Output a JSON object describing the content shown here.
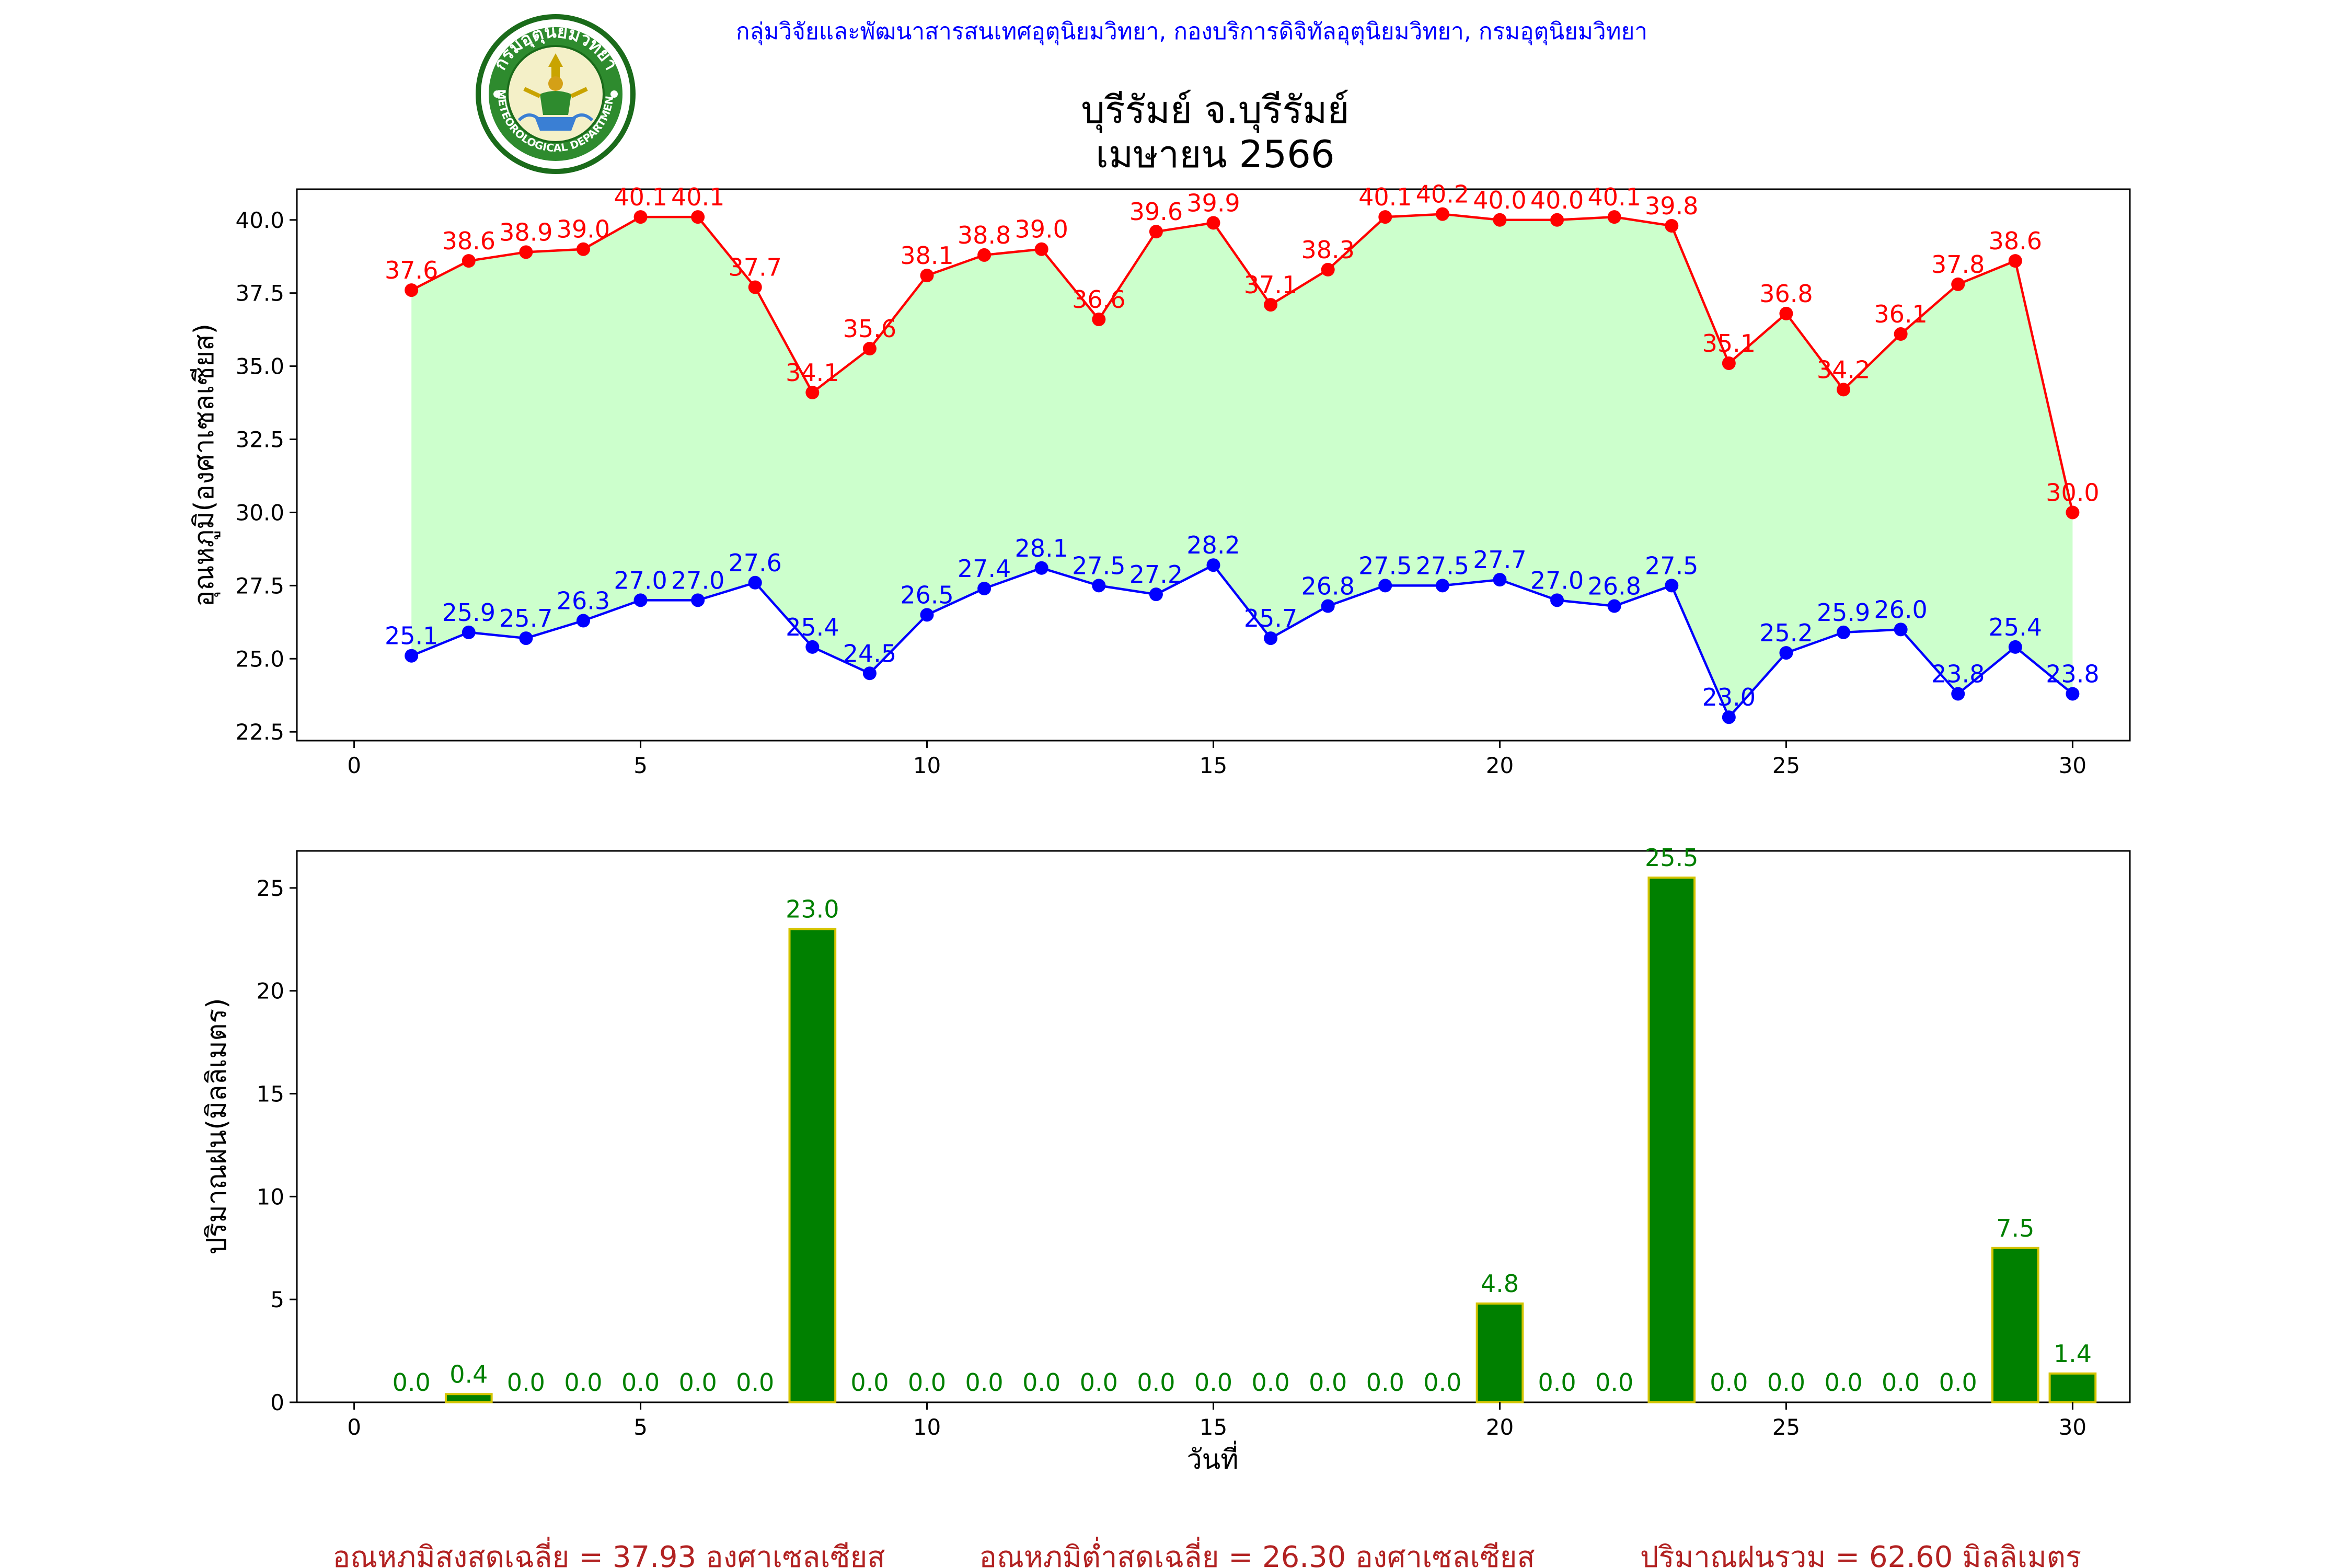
{
  "header": {
    "org": "กลุ่มวิจัยและพัฒนาสารสนเทศอุตุนิยมวิทยา, กองบริการดิจิทัลอุตุนิยมวิทยา, กรมอุตุนิยมวิทยา",
    "title": "บุรีรัมย์ จ.บุรีรัมย์",
    "subtitle": "เมษายน 2566"
  },
  "logo": {
    "text_top": "กรมอุตุนิยมวิทยา",
    "text_bottom": "METEOROLOGICAL DEPARTMENT"
  },
  "colors": {
    "max_line": "#ff0000",
    "min_line": "#0000ff",
    "band_fill": "#ccffcc",
    "rain_bar": "#008000",
    "rain_edge": "#d4c400",
    "rain_label": "#008000",
    "summary": "#b22222",
    "header_org": "#0000ff"
  },
  "chart_data": [
    {
      "type": "line",
      "ylabel": "อุณหภูมิ(องศาเซลเซียส)",
      "xlabel": "",
      "xlim": [
        -1,
        31
      ],
      "ylim": [
        22.2,
        41.05
      ],
      "xticks": [
        0,
        5,
        10,
        15,
        20,
        25,
        30
      ],
      "yticks": [
        22.5,
        25.0,
        27.5,
        30.0,
        32.5,
        35.0,
        37.5,
        40.0
      ],
      "x": [
        1,
        2,
        3,
        4,
        5,
        6,
        7,
        8,
        9,
        10,
        11,
        12,
        13,
        14,
        15,
        16,
        17,
        18,
        19,
        20,
        21,
        22,
        23,
        24,
        25,
        26,
        27,
        28,
        29,
        30
      ],
      "series": [
        {
          "values": [
            37.6,
            38.6,
            38.9,
            39.0,
            40.1,
            40.1,
            37.7,
            34.1,
            35.6,
            38.1,
            38.8,
            39.0,
            36.6,
            39.6,
            39.9,
            37.1,
            38.3,
            40.1,
            40.2,
            40.0,
            40.0,
            40.1,
            39.8,
            35.1,
            36.8,
            34.2,
            36.1,
            37.8,
            38.6,
            30.0
          ]
        },
        {
          "values": [
            25.1,
            25.9,
            25.7,
            26.3,
            27.0,
            27.0,
            27.6,
            25.4,
            24.5,
            26.5,
            27.4,
            28.1,
            27.5,
            27.2,
            28.2,
            25.7,
            26.8,
            27.5,
            27.5,
            27.7,
            27.0,
            26.8,
            27.5,
            23.0,
            25.2,
            25.9,
            26.0,
            23.8,
            25.4,
            23.8
          ]
        }
      ]
    },
    {
      "type": "bar",
      "ylabel": "ปริมาณฝน(มิลลิเมตร)",
      "xlabel": "วันที่",
      "xlim": [
        -1,
        31
      ],
      "ylim": [
        0,
        26.8
      ],
      "xticks": [
        0,
        5,
        10,
        15,
        20,
        25,
        30
      ],
      "yticks": [
        0,
        5,
        10,
        15,
        20,
        25
      ],
      "x": [
        1,
        2,
        3,
        4,
        5,
        6,
        7,
        8,
        9,
        10,
        11,
        12,
        13,
        14,
        15,
        16,
        17,
        18,
        19,
        20,
        21,
        22,
        23,
        24,
        25,
        26,
        27,
        28,
        29,
        30
      ],
      "values": [
        0.0,
        0.4,
        0.0,
        0.0,
        0.0,
        0.0,
        0.0,
        23.0,
        0.0,
        0.0,
        0.0,
        0.0,
        0.0,
        0.0,
        0.0,
        0.0,
        0.0,
        0.0,
        0.0,
        4.8,
        0.0,
        0.0,
        25.5,
        0.0,
        0.0,
        0.0,
        0.0,
        0.0,
        7.5,
        1.4
      ]
    }
  ],
  "summary": {
    "max_avg": "อุณหภูมิสูงสุดเฉลี่ย = 37.93 องศาเซลเซียส",
    "min_avg": "อุณหภูมิต่ำสุดเฉลี่ย = 26.30 องศาเซลเซียส",
    "rain_total": "ปริมาณฝนรวม = 62.60 มิลลิเมตร"
  }
}
